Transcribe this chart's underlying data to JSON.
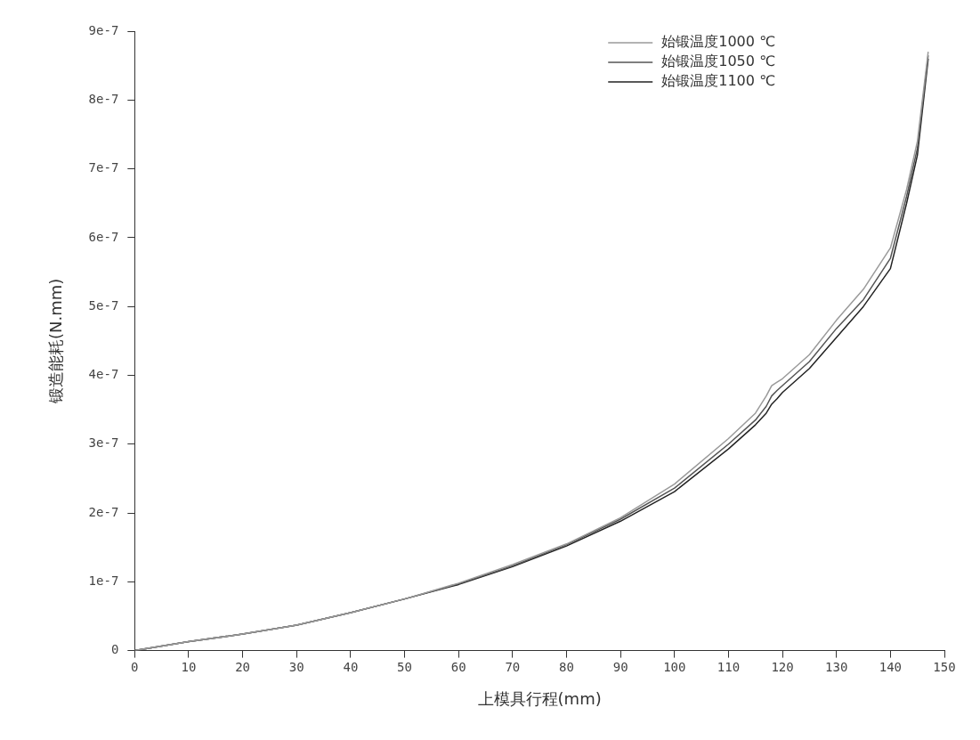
{
  "chart_data": {
    "type": "line",
    "xlabel": "上模具行程(mm)",
    "ylabel": "锻造能耗(N.mm)",
    "xlim": [
      0,
      150
    ],
    "xticks": [
      0,
      10,
      20,
      30,
      40,
      50,
      60,
      70,
      80,
      90,
      100,
      110,
      120,
      130,
      140,
      150
    ],
    "ylim": [
      0,
      9e-07
    ],
    "yticks": [
      {
        "value": 0,
        "label": "0"
      },
      {
        "value": 1e-07,
        "label": "1e-7"
      },
      {
        "value": 2e-07,
        "label": "2e-7"
      },
      {
        "value": 3e-07,
        "label": "3e-7"
      },
      {
        "value": 4e-07,
        "label": "4e-7"
      },
      {
        "value": 5e-07,
        "label": "5e-7"
      },
      {
        "value": 6e-07,
        "label": "6e-7"
      },
      {
        "value": 7e-07,
        "label": "7e-7"
      },
      {
        "value": 8e-07,
        "label": "8e-7"
      },
      {
        "value": 9e-07,
        "label": "9e-7"
      }
    ],
    "grid": false,
    "legend": "top right",
    "marker": "none",
    "line_style": "solid",
    "series": [
      {
        "name": "始锻温度1000 ℃",
        "color": "#9a9a9a",
        "x": [
          0,
          10,
          20,
          30,
          40,
          50,
          60,
          70,
          80,
          90,
          100,
          110,
          115,
          117,
          118,
          119,
          120,
          125,
          130,
          135,
          140,
          143,
          145,
          147
        ],
        "values": [
          0,
          1.3e-08,
          2.4e-08,
          3.7e-08,
          5.5e-08,
          7.5e-08,
          9.8e-08,
          1.25e-07,
          1.55e-07,
          1.93e-07,
          2.42e-07,
          3.08e-07,
          3.45e-07,
          3.7e-07,
          3.85e-07,
          3.9e-07,
          3.95e-07,
          4.3e-07,
          4.8e-07,
          5.25e-07,
          5.85e-07,
          6.7e-07,
          7.4e-07,
          8.7e-07
        ]
      },
      {
        "name": "始锻温度1050 ℃",
        "color": "#555555",
        "x": [
          0,
          10,
          20,
          30,
          40,
          50,
          60,
          70,
          80,
          90,
          100,
          110,
          115,
          117,
          118,
          119,
          120,
          125,
          130,
          135,
          140,
          143,
          145,
          147
        ],
        "values": [
          0,
          1.3e-08,
          2.4e-08,
          3.7e-08,
          5.5e-08,
          7.5e-08,
          9.7e-08,
          1.23e-07,
          1.54e-07,
          1.91e-07,
          2.36e-07,
          3e-07,
          3.35e-07,
          3.55e-07,
          3.7e-07,
          3.78e-07,
          3.85e-07,
          4.2e-07,
          4.68e-07,
          5.1e-07,
          5.7e-07,
          6.6e-07,
          7.3e-07,
          8.65e-07
        ]
      },
      {
        "name": "始锻温度1100 ℃",
        "color": "#222222",
        "x": [
          0,
          10,
          20,
          30,
          40,
          50,
          60,
          70,
          80,
          90,
          100,
          110,
          115,
          117,
          118,
          119,
          120,
          125,
          130,
          135,
          140,
          143,
          145,
          147
        ],
        "values": [
          0,
          1.3e-08,
          2.4e-08,
          3.7e-08,
          5.5e-08,
          7.5e-08,
          9.6e-08,
          1.22e-07,
          1.52e-07,
          1.88e-07,
          2.31e-07,
          2.93e-07,
          3.28e-07,
          3.45e-07,
          3.58e-07,
          3.66e-07,
          3.75e-07,
          4.1e-07,
          4.55e-07,
          5e-07,
          5.55e-07,
          6.5e-07,
          7.2e-07,
          8.6e-07
        ]
      }
    ]
  }
}
